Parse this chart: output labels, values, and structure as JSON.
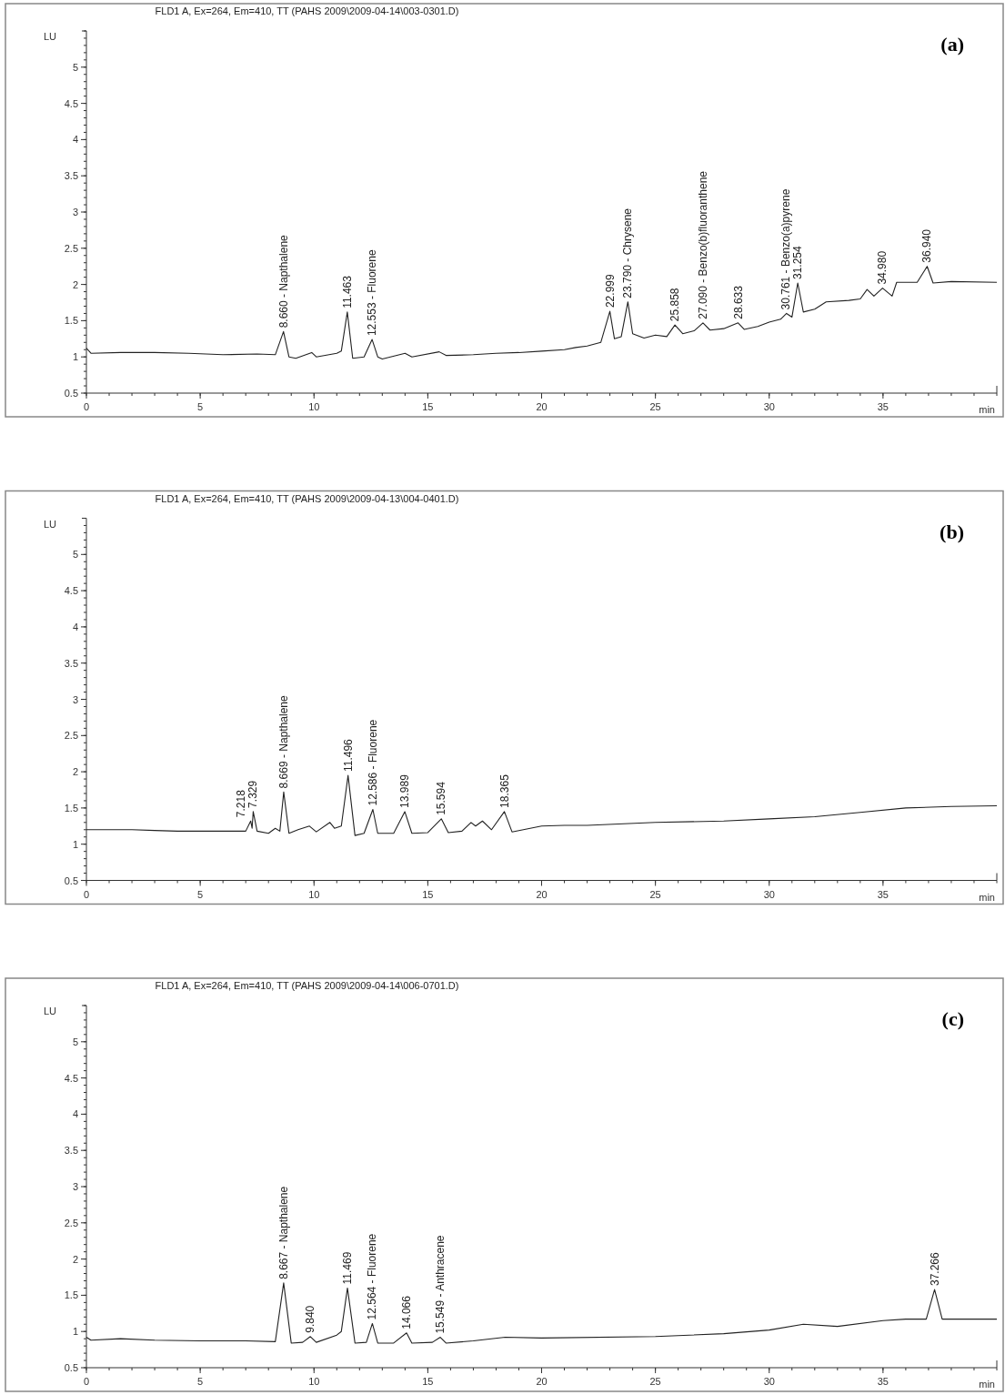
{
  "chart_data": [
    {
      "type": "line",
      "title": "FLD1 A, Ex=264, Em=410, TT (PAHS 2009\\2009-04-14\\003-0301.D)",
      "xlabel": "min",
      "ylabel": "LU",
      "xlim": [
        0,
        40
      ],
      "ylim": [
        0.5,
        5.5
      ],
      "xticks": [
        0,
        5,
        10,
        15,
        20,
        25,
        30,
        35
      ],
      "yticks": [
        0.5,
        1,
        1.5,
        2,
        2.5,
        3,
        3.5,
        4,
        4.5,
        5
      ],
      "marker": "none",
      "line_style": "solid",
      "series": [
        {
          "color": "#222222",
          "x": [
            0,
            0.2,
            1.5,
            3,
            4.5,
            6,
            7.5,
            8.3,
            8.66,
            8.9,
            9.2,
            9.9,
            10.1,
            11,
            11.2,
            11.463,
            11.7,
            12.2,
            12.553,
            12.8,
            13,
            14,
            14.3,
            15.5,
            15.8,
            17,
            18,
            19,
            20,
            21,
            21.5,
            22,
            22.6,
            22.999,
            23.2,
            23.5,
            23.79,
            24,
            24.5,
            25,
            25.5,
            25.858,
            26.2,
            26.7,
            27.09,
            27.4,
            28,
            28.633,
            28.9,
            29.5,
            30,
            30.5,
            30.761,
            31,
            31.254,
            31.5,
            32,
            32.5,
            33.5,
            34,
            34.3,
            34.6,
            34.98,
            35.4,
            35.6,
            36.5,
            36.94,
            37.2,
            38,
            40
          ],
          "values": [
            1.12,
            1.05,
            1.06,
            1.06,
            1.05,
            1.03,
            1.04,
            1.03,
            1.35,
            1.0,
            0.98,
            1.06,
            1.0,
            1.05,
            1.08,
            1.62,
            0.98,
            1.0,
            1.24,
            1.0,
            0.97,
            1.05,
            1.0,
            1.07,
            1.02,
            1.03,
            1.05,
            1.06,
            1.08,
            1.1,
            1.13,
            1.15,
            1.2,
            1.63,
            1.25,
            1.28,
            1.76,
            1.32,
            1.26,
            1.3,
            1.28,
            1.44,
            1.32,
            1.36,
            1.47,
            1.37,
            1.39,
            1.47,
            1.38,
            1.42,
            1.48,
            1.52,
            1.6,
            1.55,
            2.02,
            1.62,
            1.66,
            1.76,
            1.78,
            1.8,
            1.93,
            1.84,
            1.95,
            1.84,
            2.03,
            2.03,
            2.25,
            2.02,
            2.04,
            2.03
          ]
        }
      ],
      "annotations": [
        "(a)",
        {
          "text": "8.660 - Napthalene",
          "x": 8.66,
          "y": 1.35
        },
        {
          "text": "11.463",
          "x": 11.463,
          "y": 1.62
        },
        {
          "text": "12.553 - Fluorene",
          "x": 12.553,
          "y": 1.24
        },
        {
          "text": "22.999",
          "x": 22.999,
          "y": 1.63
        },
        {
          "text": "23.790 - Chrysene",
          "x": 23.79,
          "y": 1.76
        },
        {
          "text": "25.858",
          "x": 25.858,
          "y": 1.44
        },
        {
          "text": "27.090 - Benzo(b)fluoranthene",
          "x": 27.09,
          "y": 1.47
        },
        {
          "text": "28.633",
          "x": 28.633,
          "y": 1.47
        },
        {
          "text": "30.761 - Benzo(a)pyrene",
          "x": 30.761,
          "y": 1.6
        },
        {
          "text": "31.254",
          "x": 31.254,
          "y": 2.02
        },
        {
          "text": "34.980",
          "x": 34.98,
          "y": 1.95
        },
        {
          "text": "36.940",
          "x": 36.94,
          "y": 2.25
        }
      ]
    },
    {
      "type": "line",
      "title": "FLD1 A, Ex=264, Em=410, TT (PAHS 2009\\2009-04-13\\004-0401.D)",
      "xlabel": "min",
      "ylabel": "LU",
      "xlim": [
        0,
        40
      ],
      "ylim": [
        0.5,
        5.5
      ],
      "xticks": [
        0,
        5,
        10,
        15,
        20,
        25,
        30,
        35
      ],
      "yticks": [
        0.5,
        1,
        1.5,
        2,
        2.5,
        3,
        3.5,
        4,
        4.5,
        5
      ],
      "marker": "none",
      "line_style": "solid",
      "series": [
        {
          "color": "#222222",
          "x": [
            0,
            1,
            2,
            3,
            4,
            5,
            6,
            7,
            7.218,
            7.28,
            7.329,
            7.5,
            8,
            8.3,
            8.5,
            8.669,
            8.9,
            9.3,
            9.8,
            10.1,
            10.7,
            10.9,
            11.2,
            11.496,
            11.8,
            12.2,
            12.586,
            12.8,
            13.5,
            13.989,
            14.3,
            15,
            15.594,
            15.9,
            16.5,
            16.9,
            17.1,
            17.4,
            17.8,
            18.365,
            18.7,
            19.5,
            20,
            21,
            22,
            25,
            28,
            30,
            32,
            34,
            36,
            38,
            40
          ],
          "values": [
            1.2,
            1.2,
            1.2,
            1.19,
            1.18,
            1.18,
            1.18,
            1.18,
            1.32,
            1.22,
            1.45,
            1.18,
            1.15,
            1.22,
            1.18,
            1.72,
            1.15,
            1.2,
            1.25,
            1.17,
            1.3,
            1.22,
            1.25,
            1.95,
            1.12,
            1.15,
            1.48,
            1.15,
            1.15,
            1.45,
            1.15,
            1.16,
            1.35,
            1.16,
            1.18,
            1.3,
            1.25,
            1.32,
            1.2,
            1.45,
            1.17,
            1.22,
            1.25,
            1.26,
            1.26,
            1.3,
            1.32,
            1.35,
            1.38,
            1.44,
            1.5,
            1.52,
            1.53
          ]
        }
      ],
      "annotations": [
        "(b)",
        {
          "text": "7.218",
          "x": 7.218,
          "y": 1.32
        },
        {
          "text": "7.329",
          "x": 7.329,
          "y": 1.45
        },
        {
          "text": "8.669 - Napthalene",
          "x": 8.669,
          "y": 1.72
        },
        {
          "text": "11.496",
          "x": 11.496,
          "y": 1.95
        },
        {
          "text": "12.586 - Fluorene",
          "x": 12.586,
          "y": 1.48
        },
        {
          "text": "13.989",
          "x": 13.989,
          "y": 1.45
        },
        {
          "text": "15.594",
          "x": 15.594,
          "y": 1.35
        },
        {
          "text": "18.365",
          "x": 18.365,
          "y": 1.45
        }
      ]
    },
    {
      "type": "line",
      "title": "FLD1 A, Ex=264, Em=410, TT (PAHS 2009\\2009-04-14\\006-0701.D)",
      "xlabel": "min",
      "ylabel": "LU",
      "xlim": [
        0,
        40
      ],
      "ylim": [
        0.5,
        5.5
      ],
      "xticks": [
        0,
        5,
        10,
        15,
        20,
        25,
        30,
        35
      ],
      "yticks": [
        0.5,
        1,
        1.5,
        2,
        2.5,
        3,
        3.5,
        4,
        4.5,
        5
      ],
      "marker": "none",
      "line_style": "solid",
      "series": [
        {
          "color": "#222222",
          "x": [
            0,
            0.2,
            1.5,
            3,
            5,
            7,
            8.3,
            8.667,
            9.0,
            9.5,
            9.84,
            10.1,
            11,
            11.2,
            11.469,
            11.8,
            12.3,
            12.564,
            12.8,
            13.5,
            14.066,
            14.3,
            15.2,
            15.549,
            15.8,
            17,
            18.4,
            20,
            25,
            28,
            30,
            31.5,
            33,
            35,
            36,
            36.9,
            37.266,
            37.6,
            38,
            40
          ],
          "values": [
            0.92,
            0.88,
            0.9,
            0.88,
            0.87,
            0.87,
            0.86,
            1.67,
            0.84,
            0.85,
            0.93,
            0.85,
            0.95,
            1.0,
            1.6,
            0.84,
            0.85,
            1.11,
            0.84,
            0.84,
            0.98,
            0.84,
            0.85,
            0.92,
            0.84,
            0.87,
            0.92,
            0.91,
            0.93,
            0.97,
            1.02,
            1.1,
            1.07,
            1.15,
            1.17,
            1.17,
            1.58,
            1.17,
            1.17,
            1.17
          ]
        }
      ],
      "annotations": [
        "(c)",
        {
          "text": "8.667 - Napthalene",
          "x": 8.667,
          "y": 1.67
        },
        {
          "text": "9.840",
          "x": 9.84,
          "y": 0.93
        },
        {
          "text": "11.469",
          "x": 11.469,
          "y": 1.6
        },
        {
          "text": "12.564 - Fluorene",
          "x": 12.564,
          "y": 1.11
        },
        {
          "text": "14.066",
          "x": 14.066,
          "y": 0.98
        },
        {
          "text": "15.549 - Anthracene",
          "x": 15.549,
          "y": 0.92
        },
        {
          "text": "37.266",
          "x": 37.266,
          "y": 1.58
        }
      ]
    }
  ]
}
